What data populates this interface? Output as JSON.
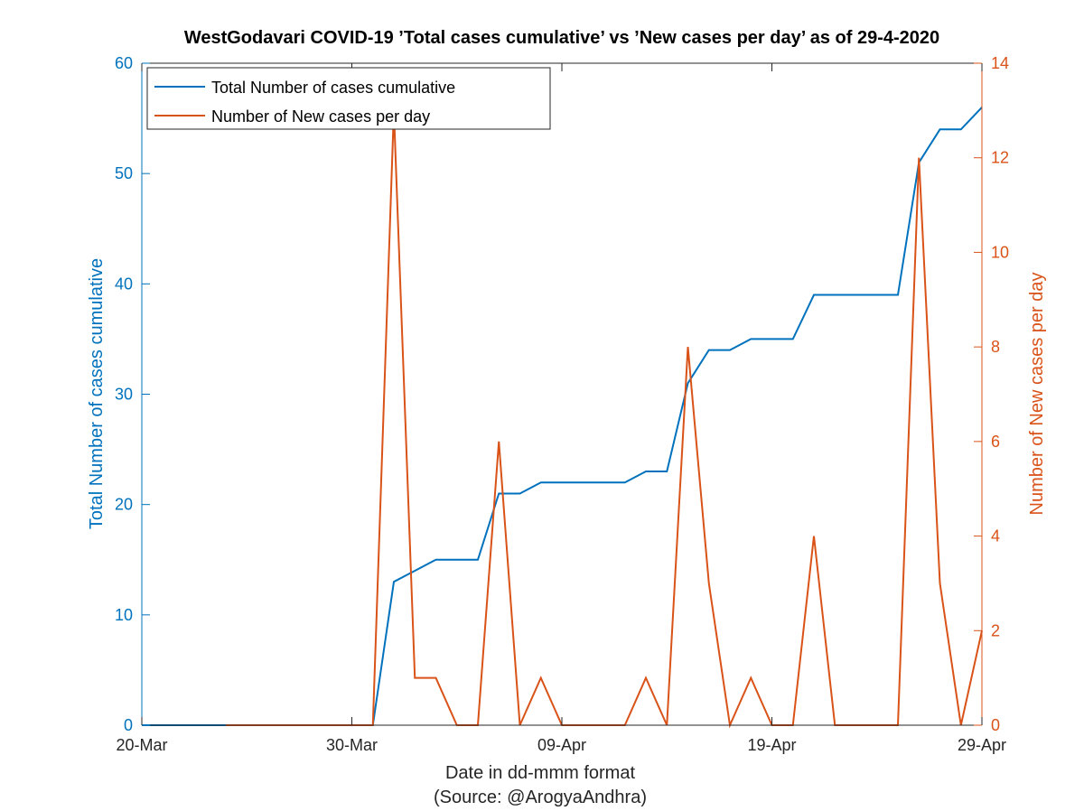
{
  "chart_data": {
    "type": "line",
    "title": "WestGodavari COVID-19 ’Total cases cumulative’ vs ’New cases per day’ as of 29-4-2020",
    "xlabel": "Date in dd-mmm format",
    "xlabel_note": "(Source: @ArogyaAndhra)",
    "ylabel_left": "Total Number of cases cumulative",
    "ylabel_right": "Number of New cases per day",
    "x_ticks": [
      "20-Mar",
      "30-Mar",
      "09-Apr",
      "19-Apr",
      "29-Apr"
    ],
    "y_left_ticks": [
      "0",
      "10",
      "20",
      "30",
      "40",
      "50",
      "60"
    ],
    "y_right_ticks": [
      "0",
      "2",
      "4",
      "6",
      "8",
      "10",
      "12",
      "14"
    ],
    "x_range": [
      "20-Mar",
      "29-Apr"
    ],
    "ylim_left": [
      0,
      60
    ],
    "ylim_right": [
      0,
      14
    ],
    "legend_position": "top-left",
    "colors": {
      "cumulative": "#0072BD",
      "new": "#D95319",
      "axis": "#262626"
    },
    "series": [
      {
        "name": "Total Number of cases cumulative",
        "axis": "left",
        "x": [
          "20-Mar",
          "24-Mar",
          "25-Mar",
          "26-Mar",
          "27-Mar",
          "28-Mar",
          "29-Mar",
          "30-Mar",
          "31-Mar",
          "01-Apr",
          "02-Apr",
          "03-Apr",
          "04-Apr",
          "05-Apr",
          "06-Apr",
          "07-Apr",
          "08-Apr",
          "09-Apr",
          "10-Apr",
          "11-Apr",
          "12-Apr",
          "13-Apr",
          "14-Apr",
          "15-Apr",
          "16-Apr",
          "17-Apr",
          "18-Apr",
          "19-Apr",
          "20-Apr",
          "21-Apr",
          "22-Apr",
          "23-Apr",
          "24-Apr",
          "25-Apr",
          "26-Apr",
          "27-Apr",
          "28-Apr",
          "29-Apr"
        ],
        "values": [
          0,
          0,
          0,
          0,
          0,
          0,
          0,
          0,
          0,
          13,
          14,
          15,
          15,
          15,
          21,
          21,
          22,
          22,
          22,
          22,
          22,
          23,
          23,
          31,
          34,
          34,
          35,
          35,
          35,
          39,
          39,
          39,
          39,
          39,
          51,
          54,
          54,
          56
        ]
      },
      {
        "name": "Number of New cases per day",
        "axis": "right",
        "x": [
          "24-Mar",
          "25-Mar",
          "26-Mar",
          "27-Mar",
          "28-Mar",
          "29-Mar",
          "30-Mar",
          "31-Mar",
          "01-Apr",
          "02-Apr",
          "03-Apr",
          "04-Apr",
          "05-Apr",
          "06-Apr",
          "07-Apr",
          "08-Apr",
          "09-Apr",
          "10-Apr",
          "11-Apr",
          "12-Apr",
          "13-Apr",
          "14-Apr",
          "15-Apr",
          "16-Apr",
          "17-Apr",
          "18-Apr",
          "19-Apr",
          "20-Apr",
          "21-Apr",
          "22-Apr",
          "23-Apr",
          "24-Apr",
          "25-Apr",
          "26-Apr",
          "27-Apr",
          "28-Apr",
          "29-Apr"
        ],
        "values": [
          0,
          0,
          0,
          0,
          0,
          0,
          0,
          0,
          13,
          1,
          1,
          0,
          0,
          6,
          0,
          1,
          0,
          0,
          0,
          0,
          1,
          0,
          8,
          3,
          0,
          1,
          0,
          0,
          4,
          0,
          0,
          0,
          0,
          12,
          3,
          0,
          2
        ]
      }
    ]
  }
}
